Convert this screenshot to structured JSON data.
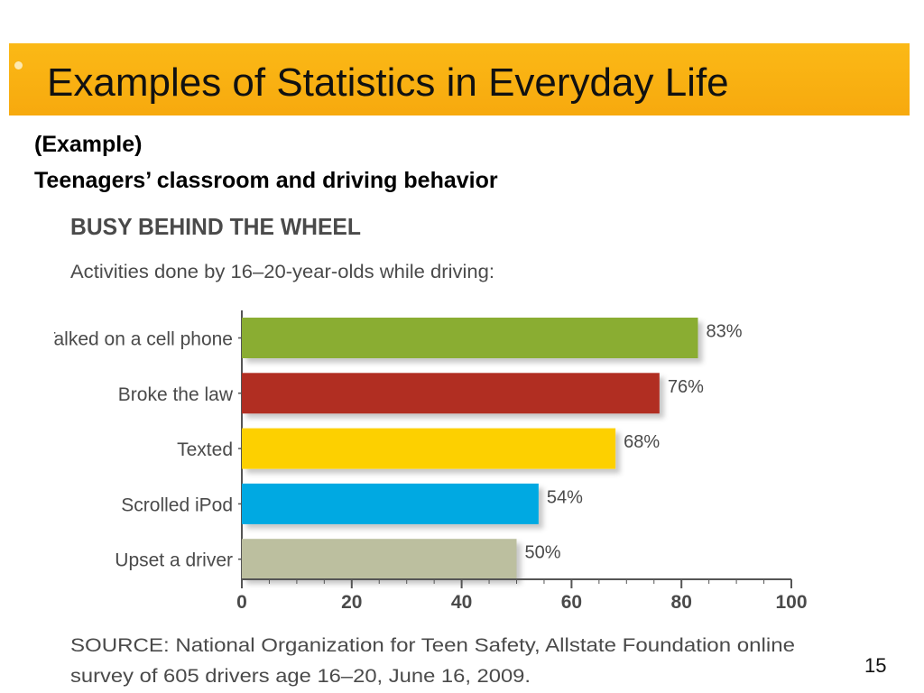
{
  "slide": {
    "title": "Examples of Statistics in Everyday Life",
    "subtitle_line1": "(Example)",
    "subtitle_line2": "Teenagers’ classroom and driving behavior",
    "page_number": "15"
  },
  "chart_data": {
    "type": "bar",
    "orientation": "horizontal",
    "title": "BUSY BEHIND THE WHEEL",
    "subtitle": "Activities done by 16–20-year-olds while driving:",
    "categories": [
      "Talked on a cell phone",
      "Broke the law",
      "Texted",
      "Scrolled iPod",
      "Upset a driver"
    ],
    "values": [
      83,
      76,
      68,
      54,
      50
    ],
    "value_labels": [
      "83%",
      "76%",
      "68%",
      "54%",
      "50%"
    ],
    "colors": [
      "#8aad32",
      "#b12e24",
      "#fdd000",
      "#00a9e2",
      "#bcbf9f"
    ],
    "xlim": [
      0,
      100
    ],
    "xticks": [
      0,
      20,
      40,
      60,
      80,
      100
    ],
    "grid": false,
    "source_line1": "SOURCE: National Organization for Teen Safety, Allstate Foundation online",
    "source_line2": "survey of 605 drivers age 16–20, June 16, 2009."
  }
}
